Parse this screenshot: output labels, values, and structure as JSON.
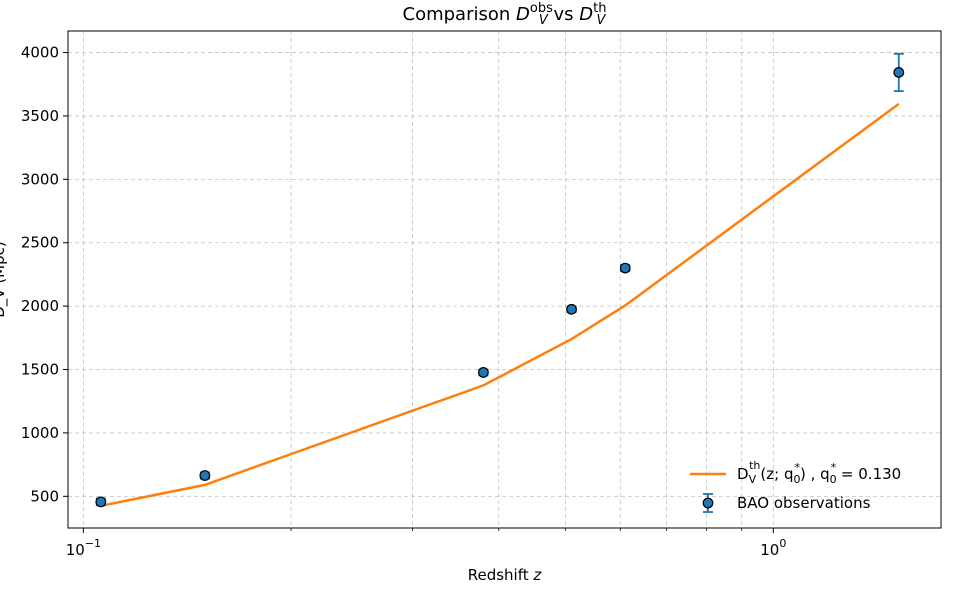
{
  "chart_data": {
    "type": "scatter",
    "title_main": "Comparison ",
    "title_obs_sup": "obs",
    "title_mid": " vs ",
    "title_th_sup": "th",
    "title_sub": "V",
    "title_symbol": "D",
    "xlabel_main": "Redshift ",
    "xlabel_var": "z",
    "ylabel": "D_V (Mpc)",
    "xscale": "log",
    "xlim": [
      0.095,
      1.75
    ],
    "ylim": [
      250,
      4170
    ],
    "xticks": [
      {
        "value": 0.1,
        "base": "10",
        "exp": "−1"
      },
      {
        "value": 1.0,
        "base": "10",
        "exp": "0"
      }
    ],
    "yticks": [
      500,
      1000,
      1500,
      2000,
      2500,
      3000,
      3500,
      4000
    ],
    "grid": true,
    "legend_position": "lower-right",
    "series": [
      {
        "kind": "line",
        "color": "#ff7f0e",
        "legend_html": "D<tspan baseline-shift='-4' font-size='11'>V</tspan><tspan baseline-shift='10' font-size='11' dx='-7'>th</tspan>(z; q<tspan baseline-shift='-4' font-size='11'>0</tspan><tspan baseline-shift='8' font-size='11' dx='-6'>*</tspan>) ,  q<tspan baseline-shift='-4' font-size='11'>0</tspan><tspan baseline-shift='8' font-size='11' dx='-6'>*</tspan> = 0.130",
        "x": [
          0.106,
          0.15,
          0.38,
          0.51,
          0.61,
          1.52
        ],
        "y": [
          425,
          590,
          1375,
          1740,
          2005,
          3595
        ]
      },
      {
        "kind": "errorbar",
        "name": "BAO observations",
        "color": "#1f77b4",
        "x": [
          0.106,
          0.15,
          0.38,
          0.51,
          0.61,
          1.52
        ],
        "y": [
          456,
          664,
          1477,
          1975,
          2300,
          3843
        ],
        "yerr": [
          27,
          25,
          23,
          22,
          24,
          147
        ]
      }
    ]
  }
}
